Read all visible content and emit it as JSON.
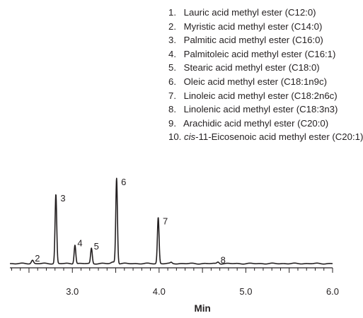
{
  "legend": [
    {
      "num": "1.",
      "pre": "",
      "italic": "",
      "text": "Lauric acid methyl ester (C12:0)"
    },
    {
      "num": "2.",
      "pre": "",
      "italic": "",
      "text": "Myristic acid methyl ester (C14:0)"
    },
    {
      "num": "3.",
      "pre": "",
      "italic": "",
      "text": "Palmitic acid methyl ester (C16:0)"
    },
    {
      "num": "4.",
      "pre": "",
      "italic": "",
      "text": "Palmitoleic acid methyl ester (C16:1)"
    },
    {
      "num": "5.",
      "pre": "",
      "italic": "",
      "text": "Stearic acid methyl ester (C18:0)"
    },
    {
      "num": "6.",
      "pre": "",
      "italic": "",
      "text": "Oleic acid methyl ester (C18:1n9c)"
    },
    {
      "num": "7.",
      "pre": "",
      "italic": "",
      "text": "Linoleic acid methyl ester (C18:2n6c)"
    },
    {
      "num": "8.",
      "pre": "",
      "italic": "",
      "text": "Linolenic acid methyl ester (C18:3n3)"
    },
    {
      "num": "9.",
      "pre": "",
      "italic": "",
      "text": "Arachidic acid methyl ester (C20:0)"
    },
    {
      "num": "10.",
      "pre": " ",
      "italic": "cis",
      "text": "-11-Eicosenoic acid methyl ester (C20:1)"
    }
  ],
  "chart_data": {
    "type": "line",
    "title": "",
    "xlabel": "Min",
    "ylabel": "",
    "xlim": [
      2.28,
      6.0
    ],
    "ylim": [
      0,
      1.0
    ],
    "xticks": [
      3.0,
      4.0,
      5.0,
      6.0
    ],
    "xtick_labels": [
      "3.0",
      "4.0",
      "5.0",
      "6.0"
    ],
    "grid": false,
    "line_color": "#231f20",
    "peaks": [
      {
        "label": "2",
        "rt": 2.54,
        "height": 0.04
      },
      {
        "label": "3",
        "rt": 2.81,
        "height": 0.81
      },
      {
        "label": "4",
        "rt": 3.03,
        "height": 0.22
      },
      {
        "label": "5",
        "rt": 3.22,
        "height": 0.18
      },
      {
        "label": "6",
        "rt": 3.51,
        "height": 1.0
      },
      {
        "label": "7",
        "rt": 3.99,
        "height": 0.54
      },
      {
        "label": "8",
        "rt": 4.68,
        "height": 0.02
      }
    ]
  }
}
